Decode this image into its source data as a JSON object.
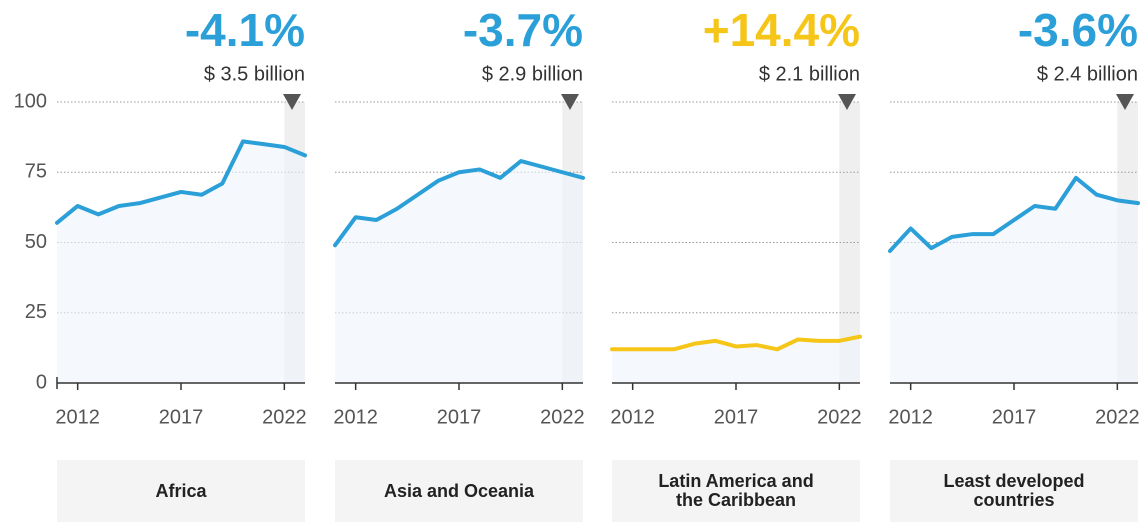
{
  "chart_data": [
    {
      "type": "line",
      "title": "Africa",
      "headline": "-4.1%",
      "subtitle": "$ 3.5 billion",
      "color": "#2a9fd8",
      "x": [
        2011,
        2012,
        2013,
        2014,
        2015,
        2016,
        2017,
        2018,
        2019,
        2020,
        2021,
        2022,
        2023
      ],
      "values": [
        57,
        63,
        60,
        63,
        64,
        66,
        68,
        67,
        71,
        86,
        85,
        84,
        81
      ],
      "xlim": [
        2011,
        2023
      ],
      "xticks": [
        2012,
        2017,
        2022
      ],
      "ylim": [
        0,
        100
      ],
      "yticks": [
        0,
        25,
        50,
        75,
        100
      ],
      "grid": true
    },
    {
      "type": "line",
      "title": "Asia and Oceania",
      "headline": "-3.7%",
      "subtitle": "$ 2.9 billion",
      "color": "#2a9fd8",
      "x": [
        2011,
        2012,
        2013,
        2014,
        2015,
        2016,
        2017,
        2018,
        2019,
        2020,
        2021,
        2022,
        2023
      ],
      "values": [
        49,
        59,
        58,
        62,
        67,
        72,
        75,
        76,
        73,
        79,
        77,
        75,
        73
      ],
      "xlim": [
        2011,
        2023
      ],
      "xticks": [
        2012,
        2017,
        2022
      ],
      "ylim": [
        0,
        100
      ],
      "yticks": [
        0,
        25,
        50,
        75,
        100
      ],
      "grid": true
    },
    {
      "type": "line",
      "title": "Latin America and the Caribbean",
      "headline": "+14.4%",
      "subtitle": "$ 2.1 billion",
      "color": "#f5c518",
      "x": [
        2011,
        2012,
        2013,
        2014,
        2015,
        2016,
        2017,
        2018,
        2019,
        2020,
        2021,
        2022,
        2023
      ],
      "values": [
        12,
        12,
        12,
        12,
        14,
        15,
        13,
        13.5,
        12,
        15.5,
        15,
        15,
        16.5
      ],
      "xlim": [
        2011,
        2023
      ],
      "xticks": [
        2012,
        2017,
        2022
      ],
      "ylim": [
        0,
        100
      ],
      "yticks": [
        0,
        25,
        50,
        75,
        100
      ],
      "grid": true
    },
    {
      "type": "line",
      "title": "Least developed countries",
      "headline": "-3.6%",
      "subtitle": "$ 2.4 billion",
      "color": "#2a9fd8",
      "x": [
        2011,
        2012,
        2013,
        2014,
        2015,
        2016,
        2017,
        2018,
        2019,
        2020,
        2021,
        2022,
        2023
      ],
      "values": [
        47,
        55,
        48,
        52,
        53,
        53,
        58,
        63,
        62,
        73,
        67,
        65,
        64
      ],
      "xlim": [
        2011,
        2023
      ],
      "xticks": [
        2012,
        2017,
        2022
      ],
      "ylim": [
        0,
        100
      ],
      "yticks": [
        0,
        25,
        50,
        75,
        100
      ],
      "grid": true
    }
  ]
}
